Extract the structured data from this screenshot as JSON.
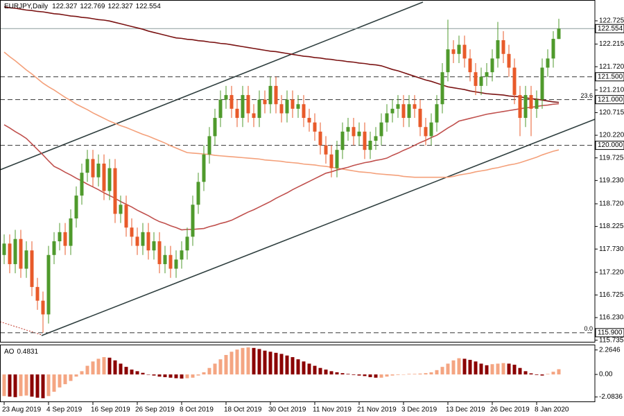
{
  "chart_data": {
    "type": "candlestick",
    "title": "EURJPY,Daily",
    "categories": [
      "23 Aug 2019",
      null,
      null,
      null,
      null,
      null,
      null,
      null,
      "4 Sep 2019",
      null,
      null,
      null,
      null,
      null,
      null,
      null,
      "16 Sep 2019",
      null,
      null,
      null,
      null,
      null,
      null,
      null,
      "26 Sep 2019",
      null,
      null,
      null,
      null,
      null,
      null,
      null,
      "8 Oct 2019",
      null,
      null,
      null,
      null,
      null,
      null,
      null,
      "18 Oct 2019",
      null,
      null,
      null,
      null,
      null,
      null,
      null,
      "30 Oct 2019",
      null,
      null,
      null,
      null,
      null,
      null,
      null,
      "11 Nov 2019",
      null,
      null,
      null,
      null,
      null,
      null,
      null,
      "21 Nov 2019",
      null,
      null,
      null,
      null,
      null,
      null,
      null,
      "3 Dec 2019",
      null,
      null,
      null,
      null,
      null,
      null,
      null,
      "13 Dec 2019",
      null,
      null,
      null,
      null,
      null,
      null,
      null,
      "26 Dec 2019",
      null,
      null,
      null,
      null,
      null,
      null,
      null,
      "8 Jan 2020",
      null,
      null,
      null,
      null
    ],
    "open": [
      117.6,
      117.85,
      117.4,
      117.95,
      117.3,
      117.7,
      116.9,
      116.6,
      116.3,
      117.6,
      117.9,
      118.1,
      117.8,
      118.4,
      118.9,
      119.4,
      119.7,
      119.3,
      119.6,
      119.0,
      119.5,
      118.5,
      118.7,
      118.2,
      118.0,
      117.8,
      118.1,
      117.7,
      117.9,
      117.4,
      117.6,
      117.3,
      117.5,
      117.7,
      118.0,
      118.7,
      119.2,
      119.8,
      120.2,
      120.6,
      121.0,
      121.1,
      120.8,
      120.6,
      121.1,
      120.7,
      120.6,
      121.0,
      120.9,
      121.3,
      120.9,
      120.7,
      121.0,
      120.8,
      120.9,
      120.6,
      120.5,
      120.3,
      120.0,
      119.8,
      119.5,
      119.9,
      120.3,
      120.4,
      120.2,
      120.3,
      119.9,
      120.1,
      120.2,
      120.5,
      120.7,
      120.8,
      120.9,
      120.6,
      120.9,
      120.8,
      120.4,
      120.2,
      120.5,
      120.9,
      121.6,
      122.1,
      122.0,
      122.2,
      121.9,
      121.6,
      121.3,
      121.5,
      121.6,
      121.9,
      122.3,
      122.0,
      121.7,
      121.1,
      120.6,
      121.1,
      120.8,
      121.0,
      121.7,
      121.9,
      122.327
    ],
    "high": [
      118.05,
      118.05,
      118.15,
      118.15,
      117.9,
      117.9,
      117.1,
      116.8,
      117.8,
      118.1,
      118.3,
      118.3,
      118.6,
      119.1,
      119.6,
      119.9,
      119.9,
      119.8,
      119.8,
      119.7,
      119.7,
      118.9,
      118.9,
      118.4,
      118.2,
      118.3,
      118.3,
      118.1,
      118.1,
      117.8,
      117.8,
      117.7,
      117.9,
      118.2,
      118.9,
      119.4,
      120.0,
      120.4,
      120.8,
      121.2,
      121.3,
      121.3,
      121.0,
      121.3,
      121.3,
      120.9,
      121.2,
      121.2,
      121.5,
      121.5,
      121.1,
      121.2,
      121.2,
      121.1,
      121.1,
      120.8,
      120.7,
      120.5,
      120.2,
      120.0,
      120.1,
      120.5,
      120.6,
      120.6,
      120.5,
      120.5,
      120.3,
      120.4,
      120.7,
      120.9,
      121.0,
      121.1,
      121.1,
      121.1,
      121.1,
      121.0,
      120.6,
      120.7,
      121.1,
      121.8,
      122.75,
      122.3,
      122.4,
      122.4,
      122.1,
      121.8,
      121.7,
      121.8,
      122.1,
      122.7,
      122.5,
      122.2,
      121.9,
      121.3,
      121.3,
      121.3,
      121.2,
      121.9,
      122.1,
      122.5,
      122.769
    ],
    "low": [
      117.4,
      117.2,
      117.2,
      117.1,
      117.1,
      116.7,
      116.4,
      115.9,
      116.1,
      117.4,
      117.7,
      117.6,
      117.6,
      118.2,
      118.7,
      119.2,
      119.1,
      119.1,
      118.8,
      118.8,
      118.3,
      118.3,
      118.0,
      117.8,
      117.6,
      117.6,
      117.5,
      117.5,
      117.2,
      117.2,
      117.1,
      117.1,
      117.3,
      117.5,
      117.8,
      118.5,
      119.0,
      119.6,
      120.0,
      120.4,
      120.8,
      120.6,
      120.4,
      120.4,
      120.5,
      120.4,
      120.4,
      120.7,
      120.7,
      120.7,
      120.5,
      120.5,
      120.6,
      120.6,
      120.4,
      120.3,
      120.1,
      119.8,
      119.6,
      119.3,
      119.3,
      119.7,
      120.1,
      120.0,
      120.0,
      119.7,
      119.7,
      119.9,
      120.0,
      120.3,
      120.5,
      120.6,
      120.4,
      120.4,
      120.6,
      120.2,
      120.0,
      120.0,
      120.3,
      120.7,
      121.4,
      121.8,
      121.8,
      121.7,
      121.4,
      121.1,
      121.1,
      121.3,
      121.4,
      121.7,
      121.8,
      121.5,
      120.9,
      120.2,
      120.4,
      120.2,
      120.6,
      120.8,
      121.5,
      121.7,
      122.327
    ],
    "close": [
      117.85,
      117.4,
      117.95,
      117.3,
      117.7,
      116.9,
      116.6,
      116.3,
      117.6,
      117.9,
      118.1,
      117.8,
      118.4,
      118.9,
      119.4,
      119.7,
      119.3,
      119.6,
      119.0,
      119.5,
      118.5,
      118.7,
      118.2,
      118.0,
      117.8,
      118.1,
      117.7,
      117.9,
      117.4,
      117.6,
      117.3,
      117.5,
      117.7,
      118.0,
      118.7,
      119.2,
      119.8,
      120.2,
      120.6,
      121.0,
      121.1,
      120.8,
      120.6,
      121.1,
      120.7,
      120.6,
      121.0,
      120.9,
      121.3,
      120.9,
      120.7,
      121.0,
      120.8,
      120.9,
      120.6,
      120.5,
      120.3,
      120.0,
      119.8,
      119.5,
      119.9,
      120.3,
      120.4,
      120.2,
      120.3,
      119.9,
      120.1,
      120.2,
      120.5,
      120.7,
      120.8,
      120.9,
      120.6,
      120.9,
      120.8,
      120.4,
      120.2,
      120.5,
      120.9,
      121.6,
      122.1,
      122.0,
      122.2,
      121.9,
      121.6,
      121.3,
      121.5,
      121.6,
      121.9,
      122.3,
      122.0,
      121.7,
      121.1,
      120.6,
      121.1,
      120.8,
      121.0,
      121.7,
      121.9,
      122.33,
      122.554
    ],
    "up_color": "#4f9a2c",
    "down_color": "#e85a2a",
    "moving_averages": [
      {
        "color": "#7a1212",
        "values": [
          123.03,
          123.01,
          123.0,
          122.98,
          122.96,
          122.95,
          122.93,
          122.92,
          122.9,
          122.88,
          122.87,
          122.85,
          122.83,
          122.82,
          122.8,
          122.79,
          122.77,
          122.75,
          122.74,
          122.72,
          122.69,
          122.66,
          122.63,
          122.6,
          122.57,
          122.54,
          122.5,
          122.47,
          122.44,
          122.41,
          122.38,
          122.35,
          122.34,
          122.32,
          122.31,
          122.29,
          122.28,
          122.26,
          122.25,
          122.23,
          122.22,
          122.2,
          122.18,
          122.16,
          122.14,
          122.12,
          122.1,
          122.08,
          122.06,
          122.05,
          122.03,
          122.01,
          121.99,
          121.97,
          121.95,
          121.94,
          121.92,
          121.91,
          121.89,
          121.88,
          121.86,
          121.85,
          121.83,
          121.82,
          121.8,
          121.79,
          121.77,
          121.76,
          121.74,
          121.7,
          121.66,
          121.63,
          121.59,
          121.55,
          121.51,
          121.47,
          121.43,
          121.4,
          121.36,
          121.32,
          121.28,
          121.26,
          121.24,
          121.22,
          121.19,
          121.17,
          121.15,
          121.13,
          121.12,
          121.11,
          121.1,
          121.08,
          121.07,
          121.06,
          121.04,
          121.02,
          121.01,
          120.99,
          120.97,
          120.95,
          120.94
        ]
      },
      {
        "color": "#f4a07a",
        "values": [
          122.04,
          121.94,
          121.85,
          121.75,
          121.65,
          121.56,
          121.46,
          121.36,
          121.28,
          121.21,
          121.13,
          121.05,
          120.98,
          120.9,
          120.84,
          120.78,
          120.71,
          120.65,
          120.59,
          120.53,
          120.48,
          120.43,
          120.39,
          120.34,
          120.29,
          120.24,
          120.2,
          120.15,
          120.1,
          120.05,
          119.99,
          119.94,
          119.89,
          119.84,
          119.83,
          119.82,
          119.81,
          119.8,
          119.78,
          119.77,
          119.76,
          119.75,
          119.74,
          119.73,
          119.72,
          119.71,
          119.7,
          119.68,
          119.67,
          119.66,
          119.65,
          119.63,
          119.62,
          119.61,
          119.59,
          119.58,
          119.57,
          119.55,
          119.54,
          119.52,
          119.5,
          119.48,
          119.46,
          119.44,
          119.42,
          119.41,
          119.4,
          119.38,
          119.37,
          119.36,
          119.35,
          119.34,
          119.32,
          119.31,
          119.3,
          119.3,
          119.3,
          119.3,
          119.3,
          119.3,
          119.3,
          119.32,
          119.35,
          119.37,
          119.39,
          119.42,
          119.44,
          119.46,
          119.49,
          119.51,
          119.54,
          119.57,
          119.59,
          119.62,
          119.66,
          119.7,
          119.74,
          119.79,
          119.83,
          119.87,
          119.9
        ]
      },
      {
        "color": "#c0504d",
        "values": [
          120.45,
          120.38,
          120.3,
          120.23,
          120.15,
          120.03,
          119.91,
          119.79,
          119.66,
          119.54,
          119.48,
          119.41,
          119.35,
          119.28,
          119.22,
          119.15,
          119.09,
          119.03,
          118.96,
          118.9,
          118.84,
          118.77,
          118.71,
          118.65,
          118.58,
          118.52,
          118.46,
          118.39,
          118.33,
          118.29,
          118.24,
          118.2,
          118.15,
          118.16,
          118.16,
          118.17,
          118.18,
          118.22,
          118.25,
          118.29,
          118.32,
          118.36,
          118.42,
          118.48,
          118.54,
          118.59,
          118.65,
          118.71,
          118.77,
          118.84,
          118.9,
          118.96,
          119.03,
          119.09,
          119.15,
          119.21,
          119.27,
          119.33,
          119.39,
          119.42,
          119.46,
          119.49,
          119.52,
          119.56,
          119.59,
          119.62,
          119.64,
          119.67,
          119.69,
          119.72,
          119.78,
          119.83,
          119.89,
          119.94,
          120.0,
          120.06,
          120.11,
          120.17,
          120.22,
          120.3,
          120.38,
          120.45,
          120.53,
          120.56,
          120.59,
          120.62,
          120.65,
          120.68,
          120.7,
          120.72,
          120.74,
          120.76,
          120.78,
          120.8,
          120.82,
          120.83,
          120.85,
          120.87,
          120.88,
          120.9,
          120.91
        ]
      }
    ],
    "levels": [
      {
        "value": 121.5,
        "label": "121.500"
      },
      {
        "value": 121,
        "label": "121.000",
        "fib": "23.6"
      },
      {
        "value": 120,
        "label": "120.000"
      },
      {
        "value": 115.9,
        "label": "115.900",
        "fib": "0.0"
      }
    ],
    "ylim": [
      115.7,
      123.18
    ],
    "yticks": [
      122.725,
      122.215,
      {
        "value": 121.72,
        "label": "121.720"
      },
      {
        "value": 121.21,
        "label": "121.210"
      },
      120.715,
      {
        "value": 120.22,
        "label": "120.220"
      },
      119.725,
      {
        "value": 119.23,
        "label": "119.230"
      },
      {
        "value": 118.72,
        "label": "118.720"
      },
      118.225,
      {
        "value": 117.73,
        "label": "117.730"
      },
      {
        "value": 117.22,
        "label": "117.220"
      },
      116.725,
      {
        "value": 116.23,
        "label": "116.230"
      },
      115.735
    ],
    "indicator": {
      "type": "bar",
      "title": "AO",
      "values": [
        -2.0,
        -2.05,
        -2.1,
        -2.0,
        -1.95,
        -2.05,
        -2.15,
        -2.2,
        -2.0,
        -1.6,
        -1.2,
        -0.9,
        -0.6,
        -0.2,
        0.3,
        0.8,
        1.2,
        1.45,
        1.6,
        1.55,
        1.3,
        1.0,
        0.7,
        0.45,
        0.3,
        0.15,
        0.0,
        -0.1,
        -0.2,
        -0.25,
        -0.3,
        -0.35,
        -0.38,
        -0.35,
        -0.3,
        -0.1,
        0.2,
        0.6,
        1.0,
        1.4,
        1.8,
        2.1,
        2.3,
        2.45,
        2.5,
        2.45,
        2.35,
        2.2,
        2.1,
        2.0,
        1.9,
        1.75,
        1.6,
        1.4,
        1.2,
        1.0,
        0.8,
        0.6,
        0.45,
        0.3,
        0.2,
        0.12,
        0.05,
        -0.05,
        -0.1,
        -0.15,
        -0.25,
        -0.3,
        -0.3,
        -0.2,
        -0.1,
        -0.05,
        0.0,
        0.05,
        0.05,
        0.08,
        0.12,
        0.2,
        0.4,
        0.7,
        1.0,
        1.3,
        1.5,
        1.45,
        1.35,
        1.2,
        1.0,
        0.85,
        0.95,
        1.0,
        1.05,
        1.0,
        0.9,
        0.6,
        0.3,
        0.1,
        -0.05,
        -0.1,
        0.05,
        0.25,
        0.4831
      ],
      "up_color": "#f4a582",
      "down_color": "#8b0000",
      "ylim": [
        -2.56,
        2.76
      ],
      "yticks": [
        2.2646,
        {
          "value": 0,
          "label": "0.00"
        },
        -2.0836
      ]
    }
  }
}
